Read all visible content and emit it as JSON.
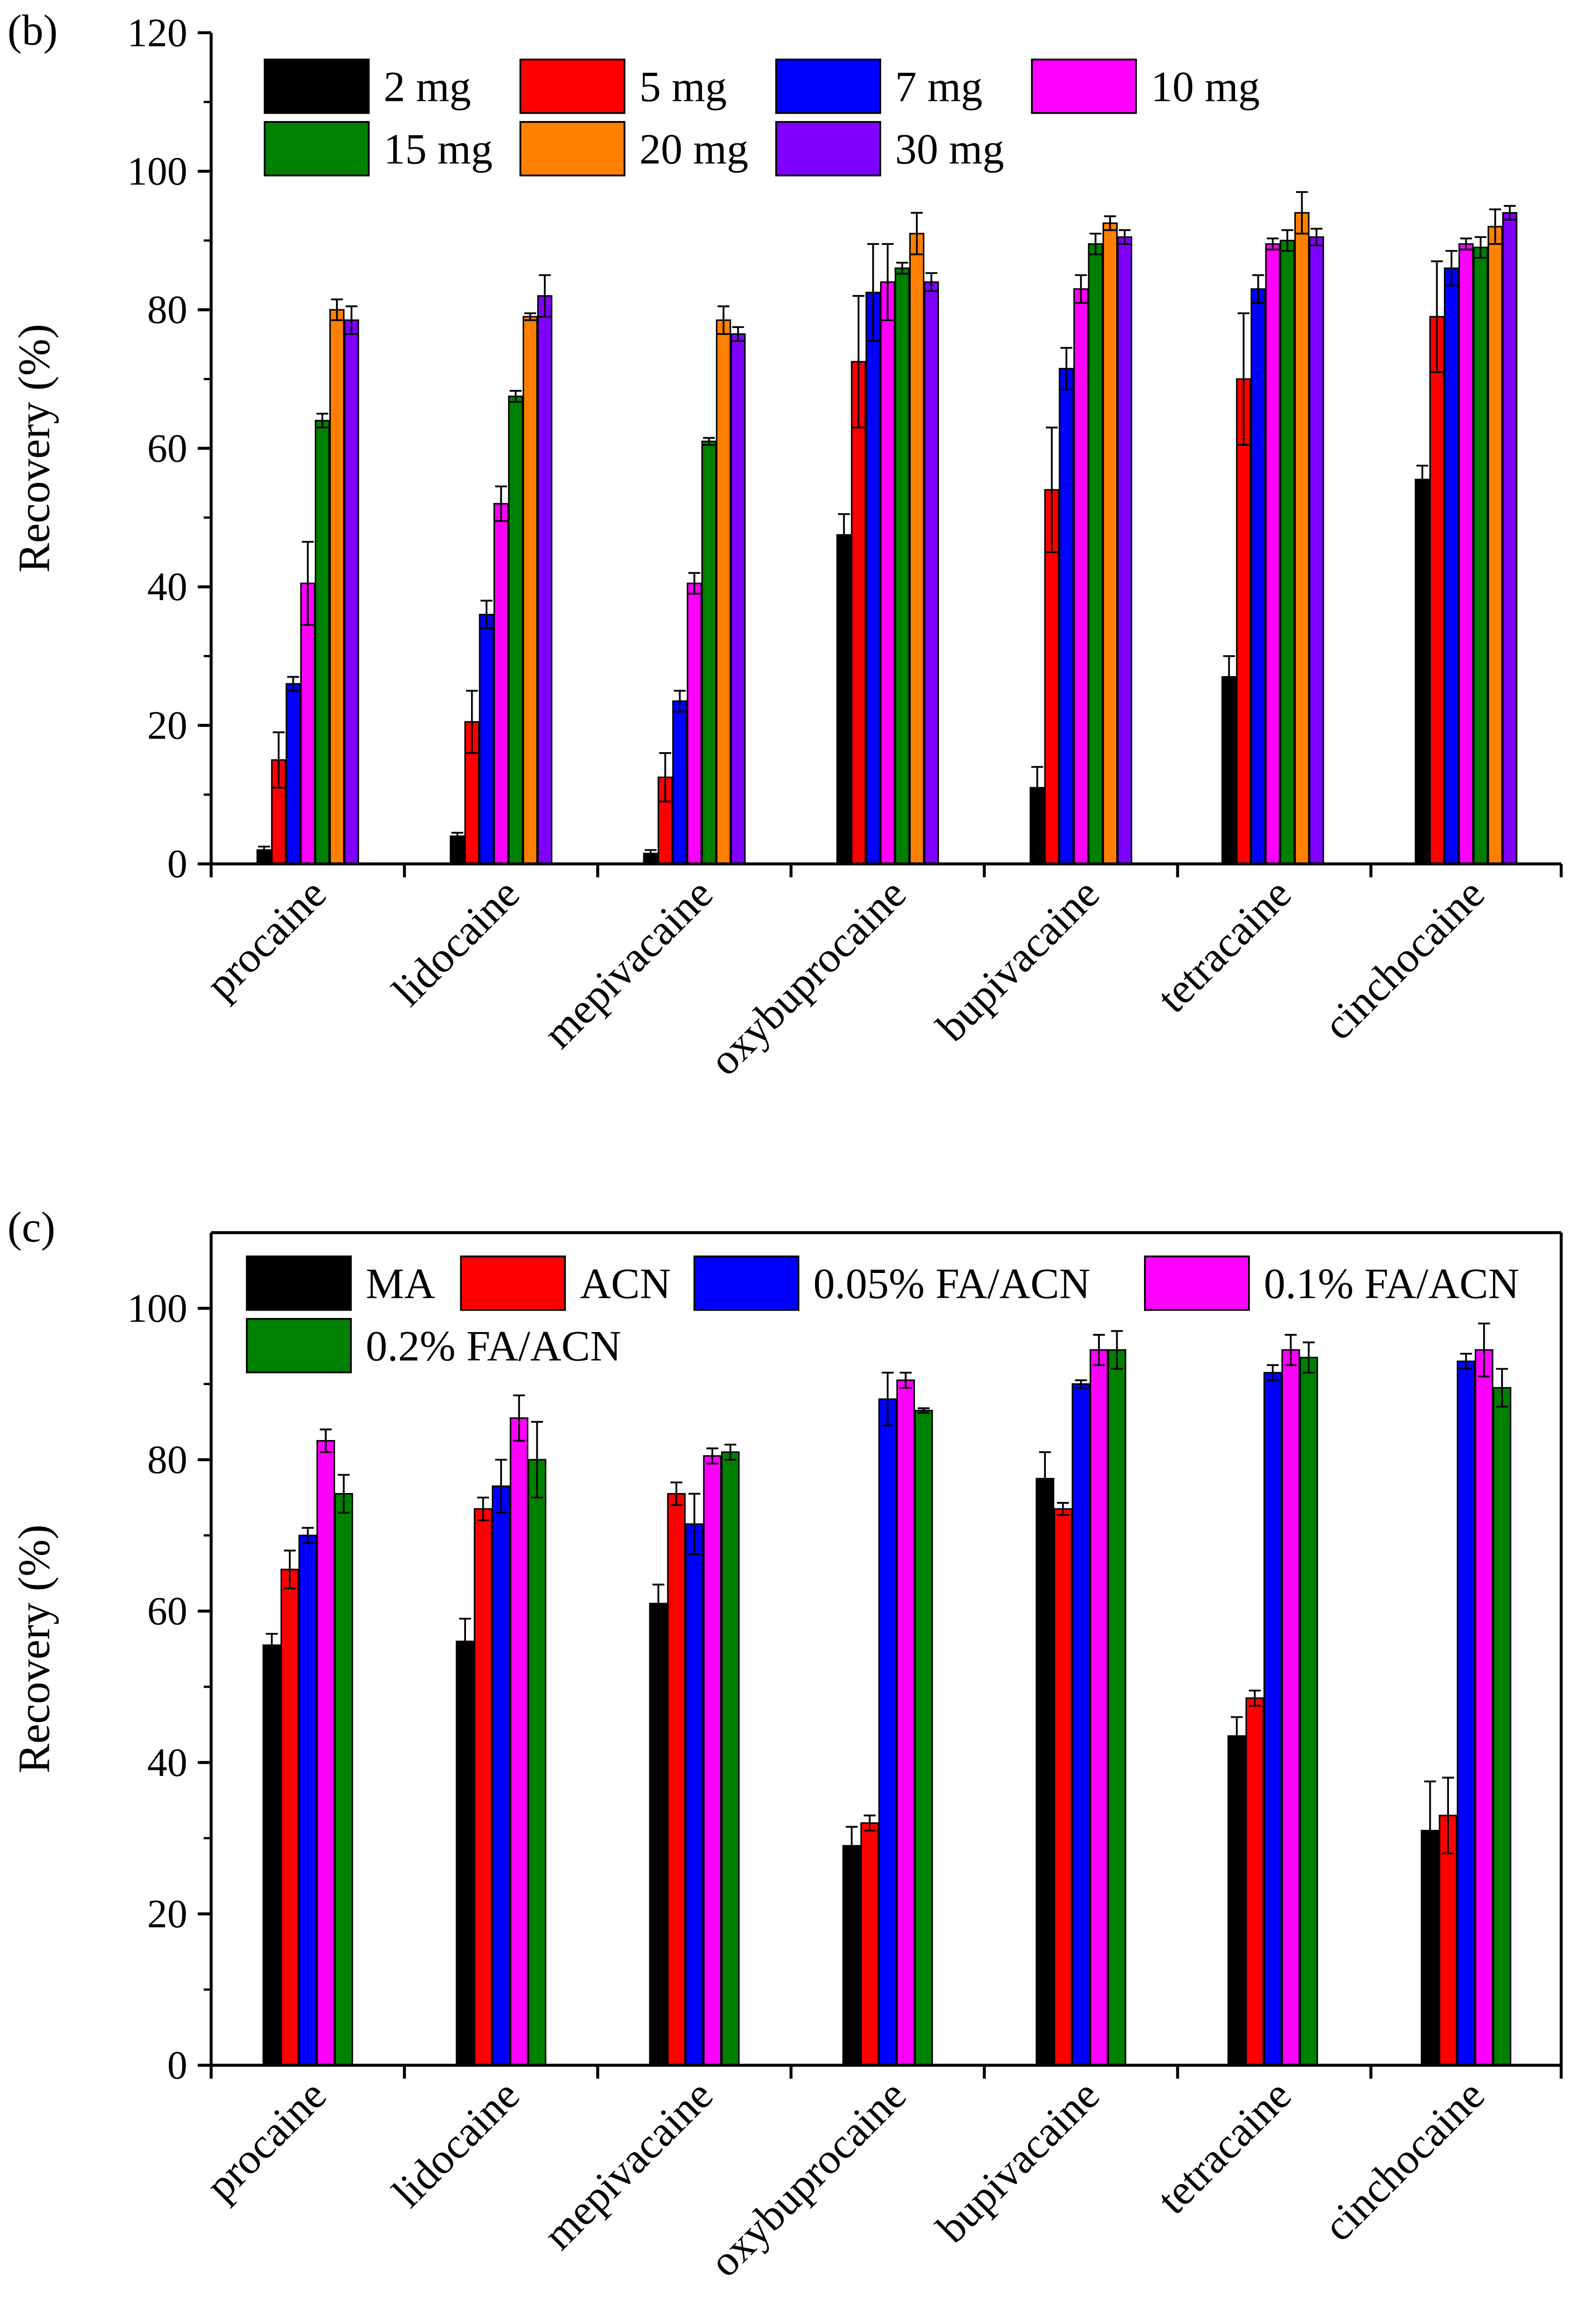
{
  "chart_data": [
    {
      "panel_label": "(b)",
      "type": "bar",
      "ylabel": "Recovery (%)",
      "xlabel": "",
      "ylim": [
        0,
        120
      ],
      "yticks": [
        0,
        20,
        40,
        60,
        80,
        100,
        120
      ],
      "box": false,
      "legend_position": "top-left",
      "categories": [
        "procaine",
        "lidocaine",
        "mepivacaine",
        "oxybuprocaine",
        "bupivacaine",
        "tetracaine",
        "cinchocaine"
      ],
      "series": [
        {
          "name": "2 mg",
          "color": "#000000",
          "values": [
            2,
            4,
            1.5,
            47.5,
            11,
            27,
            55.5
          ],
          "errors": [
            0.5,
            0.5,
            0.5,
            3,
            3,
            3,
            2
          ]
        },
        {
          "name": "5 mg",
          "color": "#ff0000",
          "values": [
            15,
            20.5,
            12.5,
            72.5,
            54,
            70,
            79
          ],
          "errors": [
            4,
            4.5,
            3.5,
            9.5,
            9,
            9.5,
            8
          ]
        },
        {
          "name": "7 mg",
          "color": "#0000ff",
          "values": [
            26,
            36,
            23.5,
            82.5,
            71.5,
            83,
            86
          ],
          "errors": [
            1,
            2,
            1.5,
            7,
            3,
            2,
            2.5
          ]
        },
        {
          "name": "10 mg",
          "color": "#ff00ff",
          "values": [
            40.5,
            52,
            40.5,
            84,
            83,
            89.5,
            89.5
          ],
          "errors": [
            6,
            2.5,
            1.5,
            5.5,
            2,
            0.8,
            0.8
          ]
        },
        {
          "name": "15 mg",
          "color": "#008000",
          "values": [
            64,
            67.5,
            61,
            86,
            89.5,
            90,
            89
          ],
          "errors": [
            1,
            0.8,
            0.5,
            0.8,
            1.5,
            1.5,
            1.5
          ]
        },
        {
          "name": "20 mg",
          "color": "#ff8000",
          "values": [
            80,
            79,
            78.5,
            91,
            92.5,
            94,
            92
          ],
          "errors": [
            1.5,
            0.5,
            2,
            3,
            1,
            3,
            2.5
          ]
        },
        {
          "name": "30 mg",
          "color": "#8000ff",
          "values": [
            78.5,
            82,
            76.5,
            84,
            90.5,
            90.5,
            94
          ],
          "errors": [
            2,
            3,
            1,
            1.3,
            1,
            1.2,
            1
          ]
        }
      ]
    },
    {
      "panel_label": "(c)",
      "type": "bar",
      "ylabel": "Recovery (%)",
      "xlabel": "",
      "ylim": [
        0,
        110
      ],
      "yticks": [
        0,
        20,
        40,
        60,
        80,
        100
      ],
      "box": true,
      "legend_position": "top-left",
      "categories": [
        "procaine",
        "lidocaine",
        "mepivacaine",
        "oxybuprocaine",
        "bupivacaine",
        "tetracaine",
        "cinchocaine"
      ],
      "series": [
        {
          "name": "MA",
          "color": "#000000",
          "values": [
            55.5,
            56,
            61,
            29,
            77.5,
            43.5,
            31
          ],
          "errors": [
            1.5,
            3,
            2.5,
            2.5,
            3.5,
            2.5,
            6.5
          ]
        },
        {
          "name": "ACN",
          "color": "#ff0000",
          "values": [
            65.5,
            73.5,
            75.5,
            32,
            73.5,
            48.5,
            33
          ],
          "errors": [
            2.5,
            1.5,
            1.5,
            1,
            0.8,
            1,
            5
          ]
        },
        {
          "name": "0.05% FA/ACN",
          "color": "#0000ff",
          "values": [
            70,
            76.5,
            71.5,
            88,
            90,
            91.5,
            93
          ],
          "errors": [
            1,
            3.5,
            4,
            3.5,
            0.5,
            1,
            1
          ]
        },
        {
          "name": "0.1% FA/ACN",
          "color": "#ff00ff",
          "values": [
            82.5,
            85.5,
            80.5,
            90.5,
            94.5,
            94.5,
            94.5
          ],
          "errors": [
            1.5,
            3,
            1,
            1,
            2,
            2,
            3.5
          ]
        },
        {
          "name": "0.2% FA/ACN",
          "color": "#008000",
          "values": [
            75.5,
            80,
            81,
            86.5,
            94.5,
            93.5,
            89.5
          ],
          "errors": [
            2.5,
            5,
            1,
            0.3,
            2.5,
            2,
            2.5
          ]
        }
      ]
    }
  ]
}
